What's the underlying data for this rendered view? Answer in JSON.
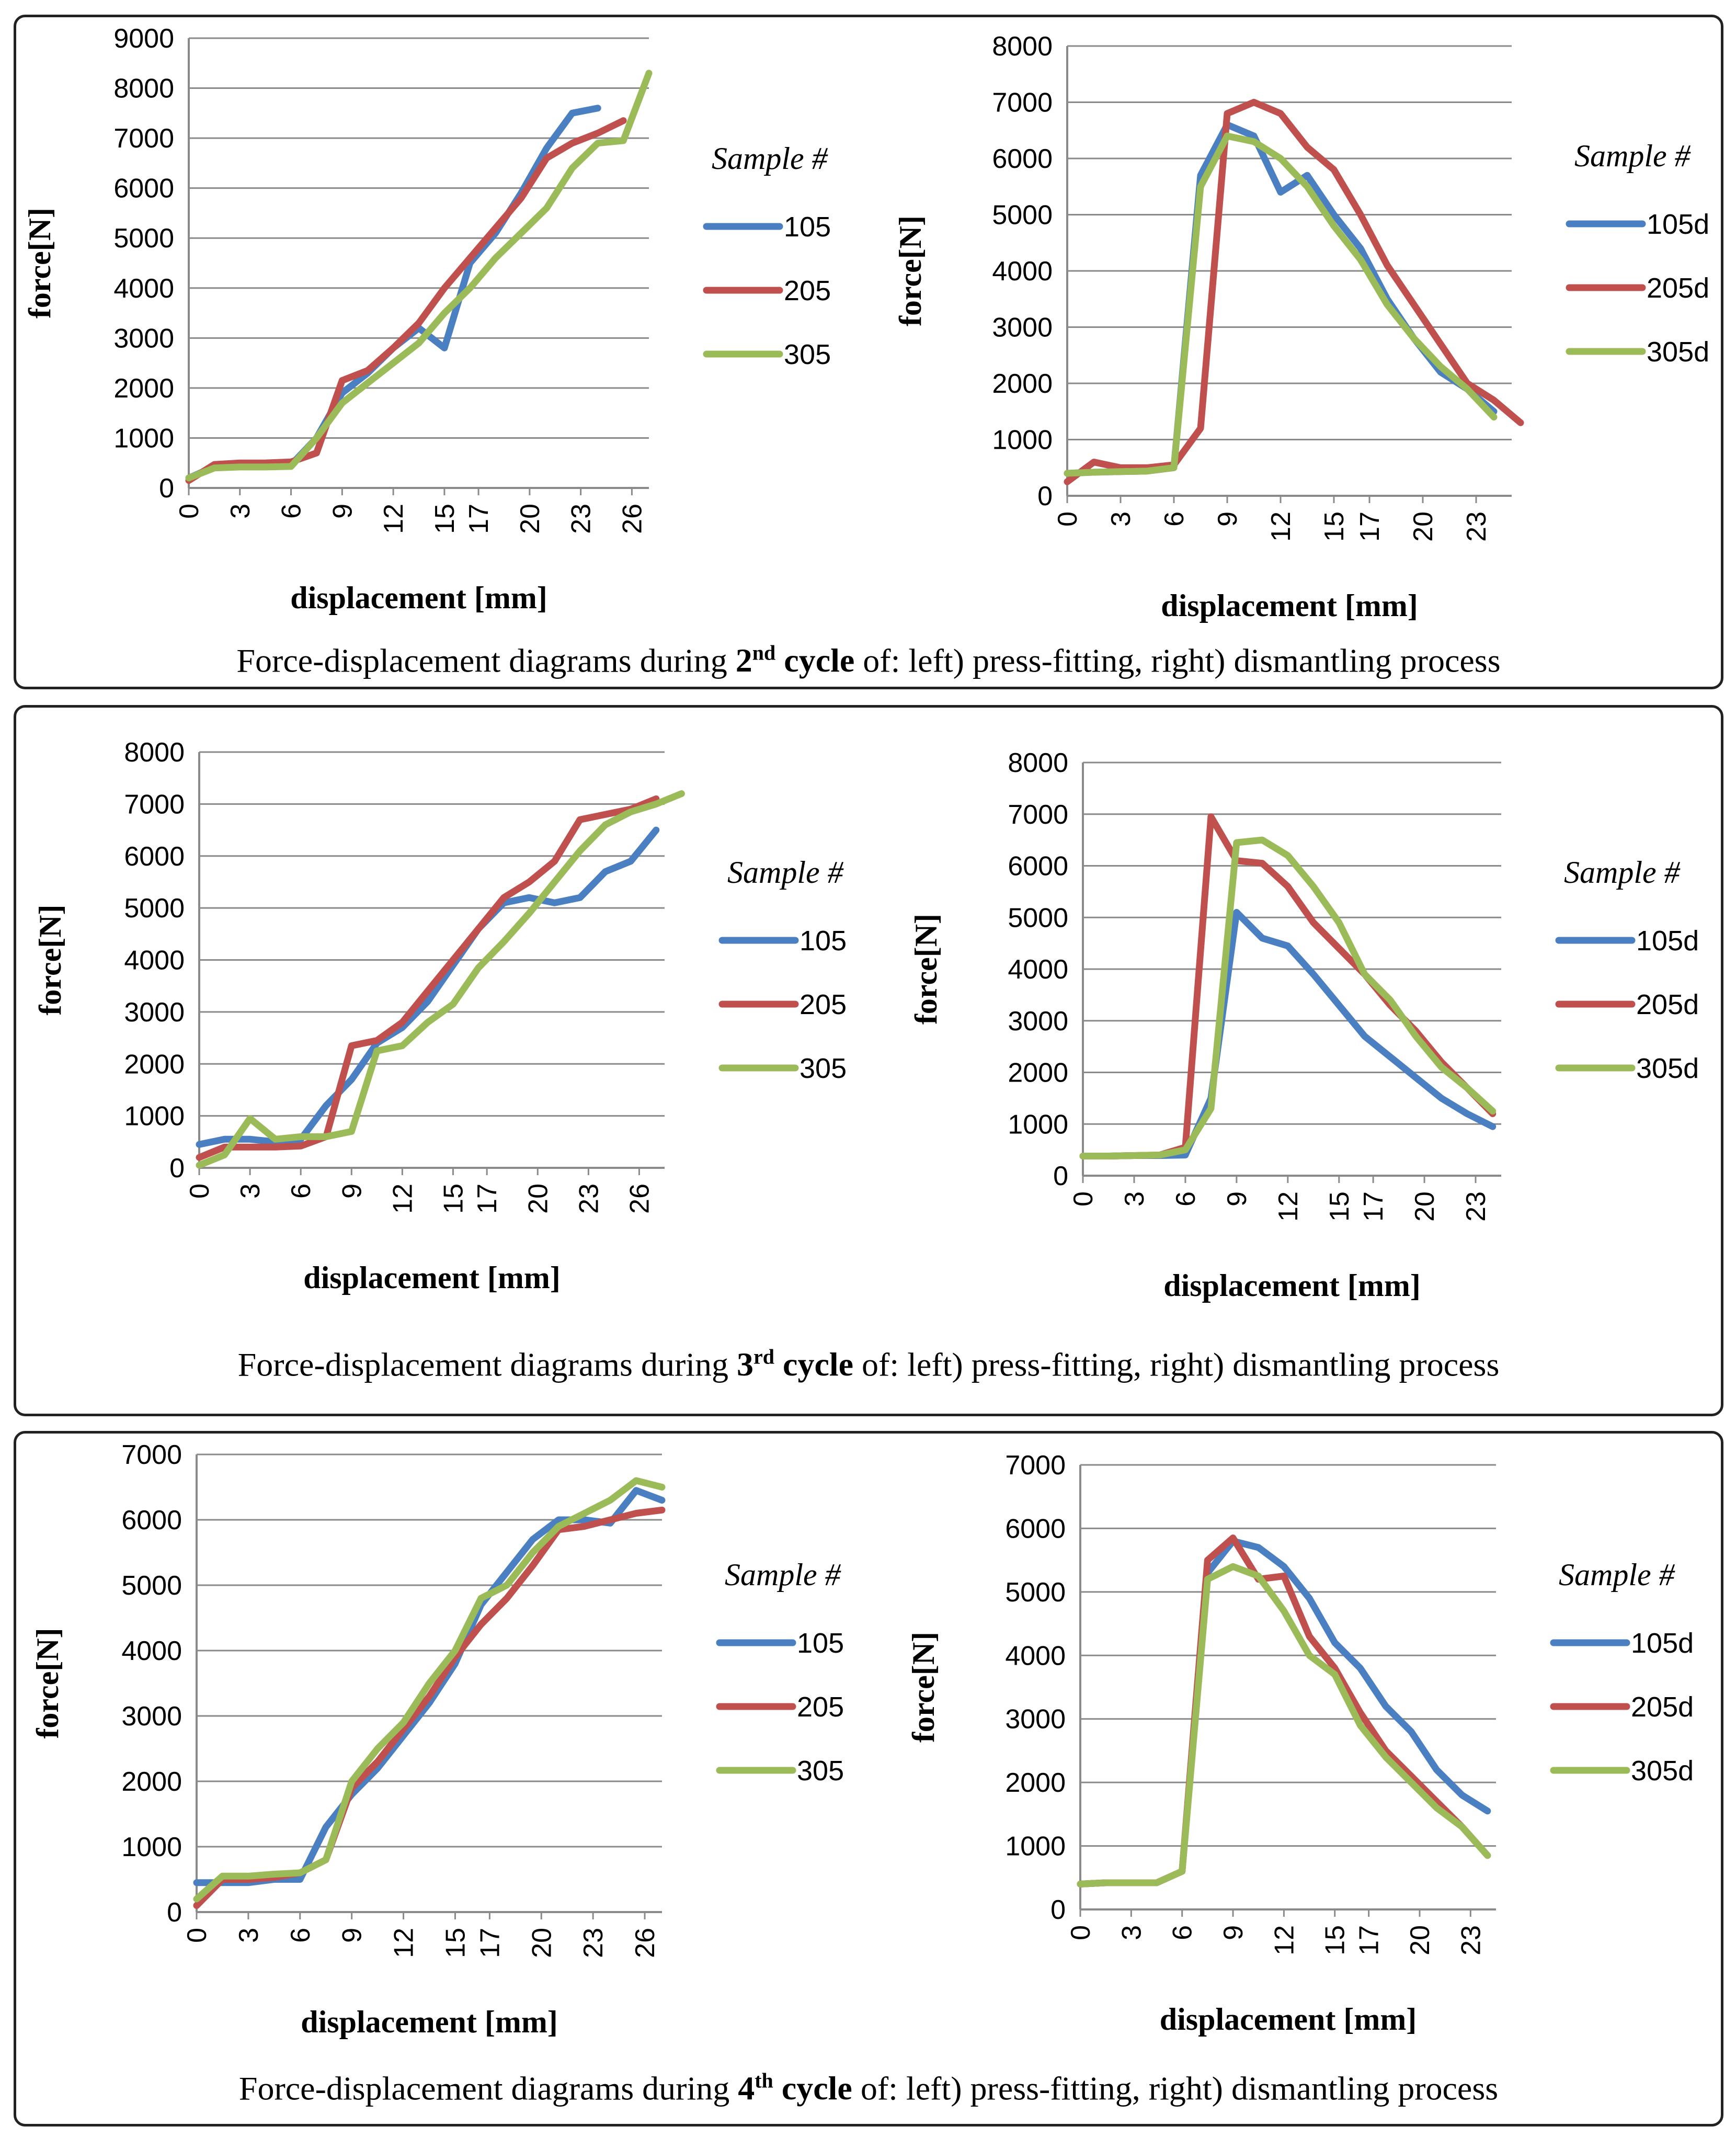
{
  "palette": {
    "blue": "#4a7fc1",
    "red": "#c0504d",
    "green": "#9bbb59",
    "grid": "#8a8a8a"
  },
  "panels": [
    {
      "caption": {
        "pre": "Force-displacement diagrams during ",
        "num": "2",
        "sup": "nd",
        "cycle": " cycle",
        "post": " of: left) press-fitting, right) dismantling process"
      }
    },
    {
      "caption": {
        "pre": "Force-displacement diagrams during ",
        "num": "3",
        "sup": "rd",
        "cycle": " cycle",
        "post": " of: left) press-fitting, right) dismantling process"
      }
    },
    {
      "caption": {
        "pre": "Force-displacement diagrams during ",
        "num": "4",
        "sup": "th",
        "cycle": " cycle",
        "post": " of: left) press-fitting, right) dismantling process"
      }
    }
  ],
  "chart_data": [
    {
      "type": "line",
      "panel": 1,
      "side": "left",
      "title": "",
      "xlabel": "displacement [mm]",
      "ylabel": "force[N]",
      "legend_title": "Sample #",
      "legend_position": "right",
      "xticks": [
        "0",
        "3",
        "6",
        "9",
        "12",
        "15",
        "17",
        "20",
        "23",
        "26"
      ],
      "ylim": [
        0,
        9000
      ],
      "ystep": 1000,
      "yticks": [
        "0",
        "1000",
        "2000",
        "3000",
        "4000",
        "5000",
        "6000",
        "7000",
        "8000",
        "9000"
      ],
      "xlim": [
        0,
        27
      ],
      "grid": true,
      "series": [
        {
          "name": "105",
          "color": "blue",
          "x": [
            0,
            1.5,
            3,
            4.5,
            6,
            7.5,
            9,
            10.5,
            12,
            13.5,
            15,
            16.5,
            18,
            19.5,
            21,
            22.5,
            24
          ],
          "y": [
            200,
            420,
            440,
            440,
            460,
            1000,
            1900,
            2300,
            2800,
            3200,
            2800,
            4500,
            5100,
            5900,
            6800,
            7500,
            7600
          ]
        },
        {
          "name": "205",
          "color": "red",
          "x": [
            0,
            1.5,
            3,
            4.5,
            6,
            7.5,
            9,
            10.5,
            12,
            13.5,
            15,
            16.5,
            18,
            19.5,
            21,
            22.5,
            24,
            25.5
          ],
          "y": [
            150,
            470,
            500,
            500,
            520,
            700,
            2150,
            2350,
            2800,
            3300,
            4000,
            4600,
            5200,
            5800,
            6600,
            6900,
            7100,
            7350
          ]
        },
        {
          "name": "305",
          "color": "green",
          "x": [
            0,
            1.5,
            3,
            4.5,
            6,
            7.5,
            9,
            10.5,
            12,
            13.5,
            15,
            16.5,
            18,
            19.5,
            21,
            22.5,
            24,
            25.5,
            27
          ],
          "y": [
            200,
            400,
            420,
            420,
            430,
            1000,
            1700,
            2100,
            2500,
            2900,
            3500,
            4000,
            4600,
            5100,
            5600,
            6400,
            6900,
            6950,
            8300
          ]
        }
      ]
    },
    {
      "type": "line",
      "panel": 1,
      "side": "right",
      "title": "",
      "xlabel": "displacement [mm]",
      "ylabel": "force[N]",
      "legend_title": "Sample #",
      "legend_position": "right",
      "xticks": [
        "0",
        "3",
        "6",
        "9",
        "12",
        "15",
        "17",
        "20",
        "23"
      ],
      "ylim": [
        0,
        8000
      ],
      "ystep": 1000,
      "yticks": [
        "0",
        "1000",
        "2000",
        "3000",
        "4000",
        "5000",
        "6000",
        "7000",
        "8000"
      ],
      "xlim": [
        0,
        25
      ],
      "grid": true,
      "series": [
        {
          "name": "105d",
          "color": "blue",
          "x": [
            0,
            1.5,
            3,
            4.5,
            6,
            7.5,
            9,
            10.5,
            12,
            13.5,
            15,
            16.5,
            18,
            19.5,
            21,
            22.5,
            24
          ],
          "y": [
            400,
            420,
            430,
            440,
            500,
            5700,
            6600,
            6400,
            5400,
            5700,
            5000,
            4400,
            3500,
            2800,
            2200,
            1900,
            1500
          ]
        },
        {
          "name": "205d",
          "color": "red",
          "x": [
            0,
            1.5,
            3,
            4.5,
            6,
            7.5,
            9,
            10.5,
            12,
            13.5,
            15,
            16.5,
            18,
            19.5,
            21,
            22.5,
            24,
            25.5
          ],
          "y": [
            250,
            600,
            500,
            500,
            550,
            1200,
            6800,
            7000,
            6800,
            6200,
            5800,
            5000,
            4100,
            3400,
            2700,
            2000,
            1700,
            1300
          ]
        },
        {
          "name": "305d",
          "color": "green",
          "x": [
            0,
            1.5,
            3,
            4.5,
            6,
            7.5,
            9,
            10.5,
            12,
            13.5,
            15,
            16.5,
            18,
            19.5,
            21,
            22.5,
            24
          ],
          "y": [
            400,
            420,
            430,
            440,
            500,
            5500,
            6400,
            6300,
            6000,
            5500,
            4800,
            4200,
            3400,
            2800,
            2300,
            1900,
            1400
          ]
        }
      ]
    },
    {
      "type": "line",
      "panel": 2,
      "side": "left",
      "title": "",
      "xlabel": "displacement [mm]",
      "ylabel": "force[N]",
      "legend_title": "Sample #",
      "legend_position": "right",
      "xticks": [
        "0",
        "3",
        "6",
        "9",
        "12",
        "15",
        "17",
        "20",
        "23",
        "26"
      ],
      "ylim": [
        0,
        8000
      ],
      "ystep": 1000,
      "yticks": [
        "0",
        "1000",
        "2000",
        "3000",
        "4000",
        "5000",
        "6000",
        "7000",
        "8000"
      ],
      "xlim": [
        0,
        27.5
      ],
      "grid": true,
      "series": [
        {
          "name": "105",
          "color": "blue",
          "x": [
            0,
            1.5,
            3,
            4.5,
            6,
            7.5,
            9,
            10.5,
            12,
            13.5,
            15,
            16.5,
            18,
            19.5,
            21,
            22.5,
            24,
            25.5,
            27
          ],
          "y": [
            450,
            550,
            550,
            500,
            550,
            1200,
            1700,
            2400,
            2700,
            3200,
            3900,
            4600,
            5100,
            5200,
            5100,
            5200,
            5700,
            5900,
            6500
          ]
        },
        {
          "name": "205",
          "color": "red",
          "x": [
            0,
            1.5,
            3,
            4.5,
            6,
            7.5,
            9,
            10.5,
            12,
            13.5,
            15,
            16.5,
            18,
            19.5,
            21,
            22.5,
            24,
            25.5,
            27
          ],
          "y": [
            200,
            400,
            400,
            400,
            420,
            600,
            2350,
            2450,
            2800,
            3400,
            4000,
            4600,
            5200,
            5500,
            5900,
            6700,
            6800,
            6900,
            7100
          ]
        },
        {
          "name": "305",
          "color": "green",
          "x": [
            0,
            1.5,
            3,
            4.5,
            6,
            7.5,
            9,
            10.5,
            12,
            13.5,
            15,
            16.5,
            18,
            19.5,
            21,
            22.5,
            24,
            25.5,
            27,
            28.5
          ],
          "y": [
            50,
            250,
            950,
            550,
            600,
            600,
            700,
            2250,
            2350,
            2800,
            3150,
            3850,
            4350,
            4900,
            5500,
            6100,
            6600,
            6850,
            7000,
            7200
          ]
        }
      ]
    },
    {
      "type": "line",
      "panel": 2,
      "side": "right",
      "title": "",
      "xlabel": "displacement [mm]",
      "ylabel": "force[N]",
      "legend_title": "Sample #",
      "legend_position": "right",
      "xticks": [
        "0",
        "3",
        "6",
        "9",
        "12",
        "15",
        "17",
        "20",
        "23"
      ],
      "ylim": [
        0,
        8000
      ],
      "ystep": 1000,
      "yticks": [
        "0",
        "1000",
        "2000",
        "3000",
        "4000",
        "5000",
        "6000",
        "7000",
        "8000"
      ],
      "xlim": [
        0,
        24.5
      ],
      "grid": true,
      "series": [
        {
          "name": "105d",
          "color": "blue",
          "x": [
            0,
            1.5,
            3,
            4.5,
            6,
            7.5,
            9,
            10.5,
            12,
            13.5,
            15,
            16.5,
            18,
            19.5,
            21,
            22.5,
            24
          ],
          "y": [
            380,
            380,
            390,
            390,
            400,
            1500,
            5100,
            4600,
            4450,
            3900,
            3300,
            2700,
            2300,
            1900,
            1500,
            1200,
            950
          ]
        },
        {
          "name": "205d",
          "color": "red",
          "x": [
            0,
            1.5,
            3,
            4.5,
            6,
            7.5,
            9,
            10.5,
            12,
            13.5,
            15,
            16.5,
            18,
            19.5,
            21,
            22.5,
            24
          ],
          "y": [
            380,
            380,
            390,
            400,
            550,
            6950,
            6100,
            6050,
            5600,
            4900,
            4400,
            3900,
            3300,
            2800,
            2200,
            1700,
            1200
          ]
        },
        {
          "name": "305d",
          "color": "green",
          "x": [
            0,
            1.5,
            3,
            4.5,
            6,
            7.5,
            9,
            10.5,
            12,
            13.5,
            15,
            16.5,
            18,
            19.5,
            21,
            22.5,
            24
          ],
          "y": [
            380,
            380,
            390,
            400,
            500,
            1300,
            6450,
            6500,
            6200,
            5600,
            4900,
            3900,
            3400,
            2700,
            2100,
            1700,
            1250
          ]
        }
      ]
    },
    {
      "type": "line",
      "panel": 3,
      "side": "left",
      "title": "",
      "xlabel": "displacement [mm]",
      "ylabel": "force[N]",
      "legend_title": "Sample #",
      "legend_position": "right",
      "xticks": [
        "0",
        "3",
        "6",
        "9",
        "12",
        "15",
        "17",
        "20",
        "23",
        "26"
      ],
      "ylim": [
        0,
        7000
      ],
      "ystep": 1000,
      "yticks": [
        "0",
        "1000",
        "2000",
        "3000",
        "4000",
        "5000",
        "6000",
        "7000"
      ],
      "xlim": [
        0,
        27
      ],
      "grid": true,
      "series": [
        {
          "name": "105",
          "color": "blue",
          "x": [
            0,
            1.5,
            3,
            4.5,
            6,
            7.5,
            9,
            10.5,
            12,
            13.5,
            15,
            16.5,
            18,
            19.5,
            21,
            22.5,
            24,
            25.5,
            27
          ],
          "y": [
            450,
            450,
            450,
            500,
            500,
            1300,
            1800,
            2200,
            2700,
            3200,
            3800,
            4700,
            5200,
            5700,
            6000,
            6000,
            5950,
            6450,
            6300
          ]
        },
        {
          "name": "205",
          "color": "red",
          "x": [
            0,
            1.5,
            3,
            4.5,
            6,
            7.5,
            9,
            10.5,
            12,
            13.5,
            15,
            16.5,
            18,
            19.5,
            21,
            22.5,
            24,
            25.5,
            27
          ],
          "y": [
            100,
            500,
            500,
            530,
            600,
            800,
            1900,
            2300,
            2800,
            3300,
            3900,
            4400,
            4800,
            5300,
            5850,
            5900,
            6000,
            6100,
            6150
          ]
        },
        {
          "name": "305",
          "color": "green",
          "x": [
            0,
            1.5,
            3,
            4.5,
            6,
            7.5,
            9,
            10.5,
            12,
            13.5,
            15,
            16.5,
            18,
            19.5,
            21,
            22.5,
            24,
            25.5,
            27
          ],
          "y": [
            200,
            550,
            550,
            580,
            600,
            800,
            2000,
            2500,
            2900,
            3500,
            4000,
            4800,
            5000,
            5500,
            5900,
            6100,
            6300,
            6600,
            6500
          ]
        }
      ]
    },
    {
      "type": "line",
      "panel": 3,
      "side": "right",
      "title": "",
      "xlabel": "displacement [mm]",
      "ylabel": "force[N]",
      "legend_title": "Sample #",
      "legend_position": "right",
      "xticks": [
        "0",
        "3",
        "6",
        "9",
        "12",
        "15",
        "17",
        "20",
        "23"
      ],
      "ylim": [
        0,
        7000
      ],
      "ystep": 1000,
      "yticks": [
        "0",
        "1000",
        "2000",
        "3000",
        "4000",
        "5000",
        "6000",
        "7000"
      ],
      "xlim": [
        0,
        24.5
      ],
      "grid": true,
      "series": [
        {
          "name": "105d",
          "color": "blue",
          "x": [
            0,
            1.5,
            3,
            4.5,
            6,
            7.5,
            9,
            10.5,
            12,
            13.5,
            15,
            16.5,
            18,
            19.5,
            21,
            22.5,
            24
          ],
          "y": [
            400,
            420,
            420,
            420,
            600,
            5300,
            5800,
            5700,
            5400,
            4900,
            4200,
            3800,
            3200,
            2800,
            2200,
            1800,
            1550
          ]
        },
        {
          "name": "205d",
          "color": "red",
          "x": [
            0,
            1.5,
            3,
            4.5,
            6,
            7.5,
            9,
            10.5,
            12,
            13.5,
            15,
            16.5,
            18,
            19.5,
            21,
            22.5,
            24
          ],
          "y": [
            400,
            420,
            420,
            420,
            600,
            5500,
            5850,
            5200,
            5250,
            4300,
            3800,
            3100,
            2500,
            2100,
            1700,
            1300,
            850
          ]
        },
        {
          "name": "305d",
          "color": "green",
          "x": [
            0,
            1.5,
            3,
            4.5,
            6,
            7.5,
            9,
            10.5,
            12,
            13.5,
            15,
            16.5,
            18,
            19.5,
            21,
            22.5,
            24
          ],
          "y": [
            400,
            420,
            420,
            420,
            600,
            5200,
            5400,
            5250,
            4700,
            4000,
            3700,
            2900,
            2400,
            2000,
            1600,
            1300,
            850
          ]
        }
      ]
    }
  ]
}
